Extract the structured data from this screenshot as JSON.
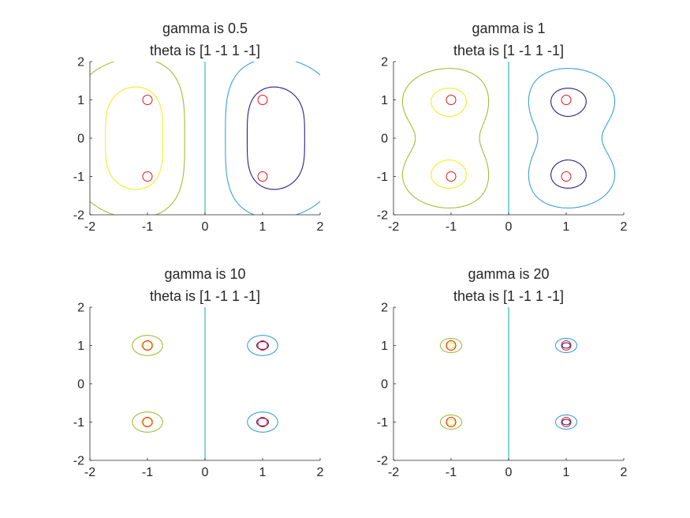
{
  "chart_data": [
    {
      "type": "contour",
      "title": [
        "gamma is 0.5",
        "theta is [1 -1 1 -1]"
      ],
      "gamma": 0.5,
      "theta": [
        1,
        -1,
        1,
        -1
      ],
      "xlim": [
        -2,
        2
      ],
      "ylim": [
        -2,
        2
      ],
      "xticks": [
        "-2",
        "-1",
        "0",
        "1",
        "2"
      ],
      "yticks": [
        "-2",
        "-1",
        "0",
        "1",
        "2"
      ],
      "centers": [
        [
          -1,
          1
        ],
        [
          1,
          1
        ],
        [
          -1,
          -1
        ],
        [
          1,
          -1
        ]
      ],
      "contour_levels": [
        -0.9,
        -0.5,
        0,
        0.5,
        0.9
      ]
    },
    {
      "type": "contour",
      "title": [
        "gamma is 1",
        "theta is [1 -1 1 -1]"
      ],
      "gamma": 1,
      "theta": [
        1,
        -1,
        1,
        -1
      ],
      "xlim": [
        -2,
        2
      ],
      "ylim": [
        -2,
        2
      ],
      "xticks": [
        "-2",
        "-1",
        "0",
        "1",
        "2"
      ],
      "yticks": [
        "-2",
        "-1",
        "0",
        "1",
        "2"
      ],
      "centers": [
        [
          -1,
          1
        ],
        [
          1,
          1
        ],
        [
          -1,
          -1
        ],
        [
          1,
          -1
        ]
      ],
      "contour_levels": [
        -0.9,
        -0.5,
        0,
        0.5,
        0.9
      ]
    },
    {
      "type": "contour",
      "title": [
        "gamma is 10",
        "theta is [1 -1 1 -1]"
      ],
      "gamma": 10,
      "theta": [
        1,
        -1,
        1,
        -1
      ],
      "xlim": [
        -2,
        2
      ],
      "ylim": [
        -2,
        2
      ],
      "xticks": [
        "-2",
        "-1",
        "0",
        "1",
        "2"
      ],
      "yticks": [
        "-2",
        "-1",
        "0",
        "1",
        "2"
      ],
      "centers": [
        [
          -1,
          1
        ],
        [
          1,
          1
        ],
        [
          -1,
          -1
        ],
        [
          1,
          -1
        ]
      ],
      "contour_levels": [
        -0.9,
        -0.5,
        0,
        0.5,
        0.9
      ]
    },
    {
      "type": "contour",
      "title": [
        "gamma is 20",
        "theta is [1 -1 1 -1]"
      ],
      "gamma": 20,
      "theta": [
        1,
        -1,
        1,
        -1
      ],
      "xlim": [
        -2,
        2
      ],
      "ylim": [
        -2,
        2
      ],
      "xticks": [
        "-2",
        "-1",
        "0",
        "1",
        "2"
      ],
      "yticks": [
        "-2",
        "-1",
        "0",
        "1",
        "2"
      ],
      "centers": [
        [
          -1,
          1
        ],
        [
          1,
          1
        ],
        [
          -1,
          -1
        ],
        [
          1,
          -1
        ]
      ],
      "contour_levels": [
        -0.9,
        -0.5,
        0,
        0.5,
        0.9
      ]
    }
  ],
  "colors": {
    "contour_levels": [
      "#2c1f8a",
      "#3c9fd8",
      "#20b0b0",
      "#a8bb35",
      "#f2ee22"
    ],
    "center_marker": "#e8141b",
    "axis": "#262626",
    "background": "#ffffff"
  },
  "marker_symbol": "circle"
}
